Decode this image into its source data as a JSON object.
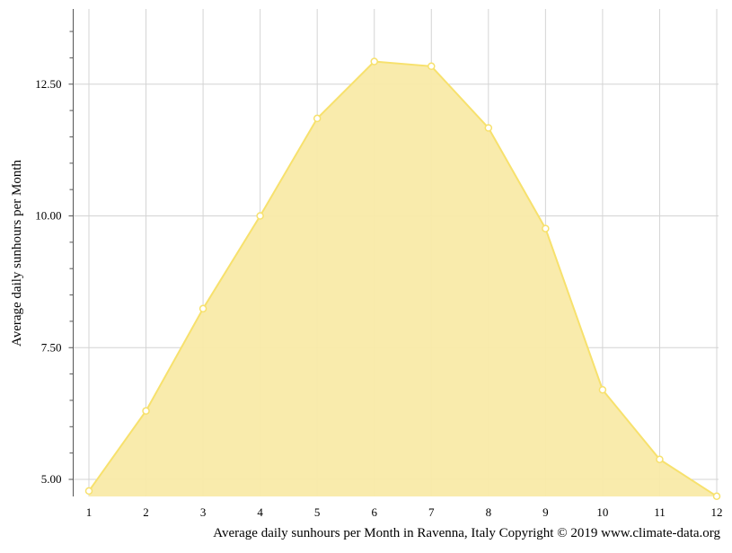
{
  "chart_data": {
    "type": "area",
    "title": "",
    "xlabel": "",
    "ylabel": "Average daily sunhours per Month",
    "caption": "Average daily sunhours per Month in Ravenna, Italy Copyright © 2019 www.climate-data.org",
    "x": [
      1,
      2,
      3,
      4,
      5,
      6,
      7,
      8,
      9,
      10,
      11,
      12
    ],
    "x_tick_labels": [
      "1",
      "2",
      "3",
      "4",
      "5",
      "6",
      "7",
      "8",
      "9",
      "10",
      "11",
      "12"
    ],
    "y_tick_labels": [
      "5.00",
      "7.50",
      "10.00",
      "12.50"
    ],
    "y_ticks": [
      5.0,
      7.5,
      10.0,
      12.5
    ],
    "ylim": [
      4.7,
      14.4
    ],
    "xlim": [
      1,
      12
    ],
    "grid": true,
    "series": [
      {
        "values": [
          4.78,
          6.3,
          8.24,
          10.0,
          11.85,
          12.93,
          12.84,
          11.67,
          9.76,
          6.7,
          5.38,
          4.68
        ],
        "color": "#f7e16d",
        "fill_color": "#f9eaa8"
      }
    ]
  }
}
